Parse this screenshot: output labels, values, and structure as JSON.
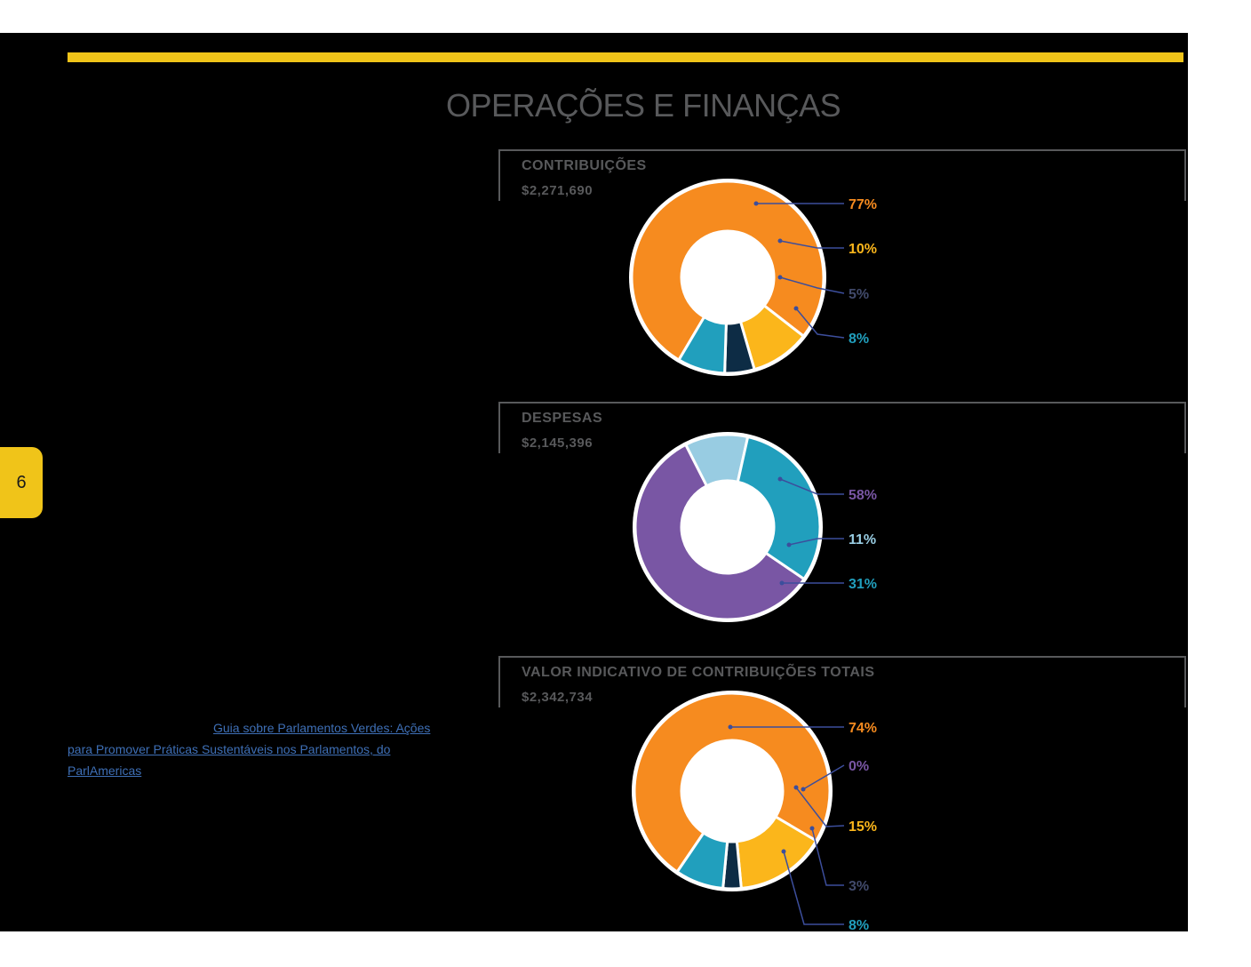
{
  "page_number": "6",
  "title": "OPERAÇÕES E FINANÇAS",
  "link_lines": [
    "Guia sobre Parlamentos Verdes: Ações ",
    "para Promover Práticas Sustentáveis nos Parlamentos, do ",
    "ParlAmericas"
  ],
  "colors": {
    "accent": "#f0c419",
    "orange": "#f68b1f",
    "yellow": "#fbb61b",
    "navy": "#0d2c45",
    "teal": "#219fbd",
    "purple": "#7956a4",
    "light_blue": "#98cce2",
    "slate": "#414a6b",
    "leader": "#3c4e9c"
  },
  "chart_data": [
    {
      "type": "pie",
      "donut": true,
      "title": "CONTRIBUIÇÕES",
      "subtitle": "$2,271,690",
      "slices": [
        {
          "value": 77,
          "label": "77%",
          "color": "#f68b1f"
        },
        {
          "value": 10,
          "label": "10%",
          "color": "#fbb61b"
        },
        {
          "value": 5,
          "label": "5%",
          "color": "#0d2c45",
          "label_color": "#414a6b"
        },
        {
          "value": 8,
          "label": "8%",
          "color": "#219fbd"
        }
      ]
    },
    {
      "type": "pie",
      "donut": true,
      "title": "DESPESAS",
      "subtitle": "$2,145,396",
      "slices": [
        {
          "value": 58,
          "label": "58%",
          "color": "#7956a4"
        },
        {
          "value": 11,
          "label": "11%",
          "color": "#98cce2"
        },
        {
          "value": 31,
          "label": "31%",
          "color": "#219fbd"
        }
      ]
    },
    {
      "type": "pie",
      "donut": true,
      "title": "VALOR INDICATIVO DE CONTRIBUIÇÕES TOTAIS",
      "subtitle": "$2,342,734",
      "slices": [
        {
          "value": 74,
          "label": "74%",
          "color": "#f68b1f"
        },
        {
          "value": 0,
          "label": "0%",
          "color": "#7956a4"
        },
        {
          "value": 15,
          "label": "15%",
          "color": "#fbb61b"
        },
        {
          "value": 3,
          "label": "3%",
          "color": "#0d2c45",
          "label_color": "#414a6b"
        },
        {
          "value": 8,
          "label": "8%",
          "color": "#219fbd"
        }
      ]
    }
  ]
}
